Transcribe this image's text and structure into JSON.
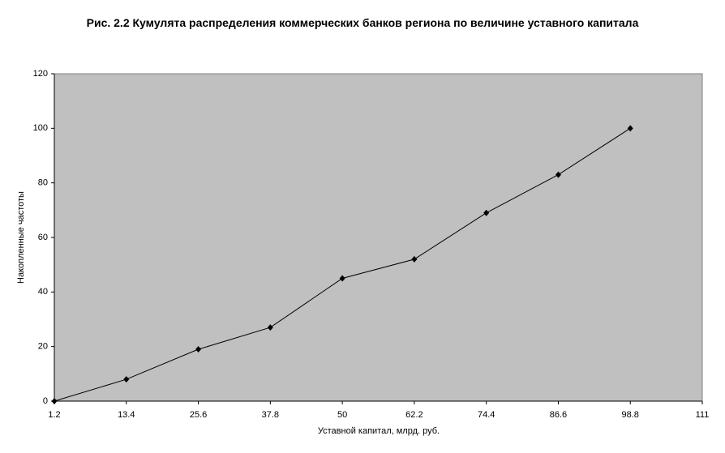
{
  "chart_data": {
    "type": "line",
    "title": "Рис. 2.2 Кумулята распределения коммерческих банков региона по величине уставного капитала",
    "x_label": "Уставной капитал, млрд. руб.",
    "y_label": "Накопленные частоты",
    "x": [
      1.2,
      13.4,
      25.6,
      37.8,
      50,
      62.2,
      74.4,
      86.6,
      98.8
    ],
    "series": [
      {
        "color": "#000000",
        "values": [
          0,
          8,
          19,
          27,
          45,
          52,
          69,
          83,
          100
        ]
      }
    ],
    "xlim": [
      1.2,
      111
    ],
    "xticks": [
      1.2,
      13.4,
      25.6,
      37.8,
      50,
      62.2,
      74.4,
      86.6,
      98.8,
      111
    ],
    "ylim": [
      0,
      120
    ],
    "yticks": [
      0,
      20,
      40,
      60,
      80,
      100,
      120
    ],
    "plot_background": "#c0c0c0"
  }
}
